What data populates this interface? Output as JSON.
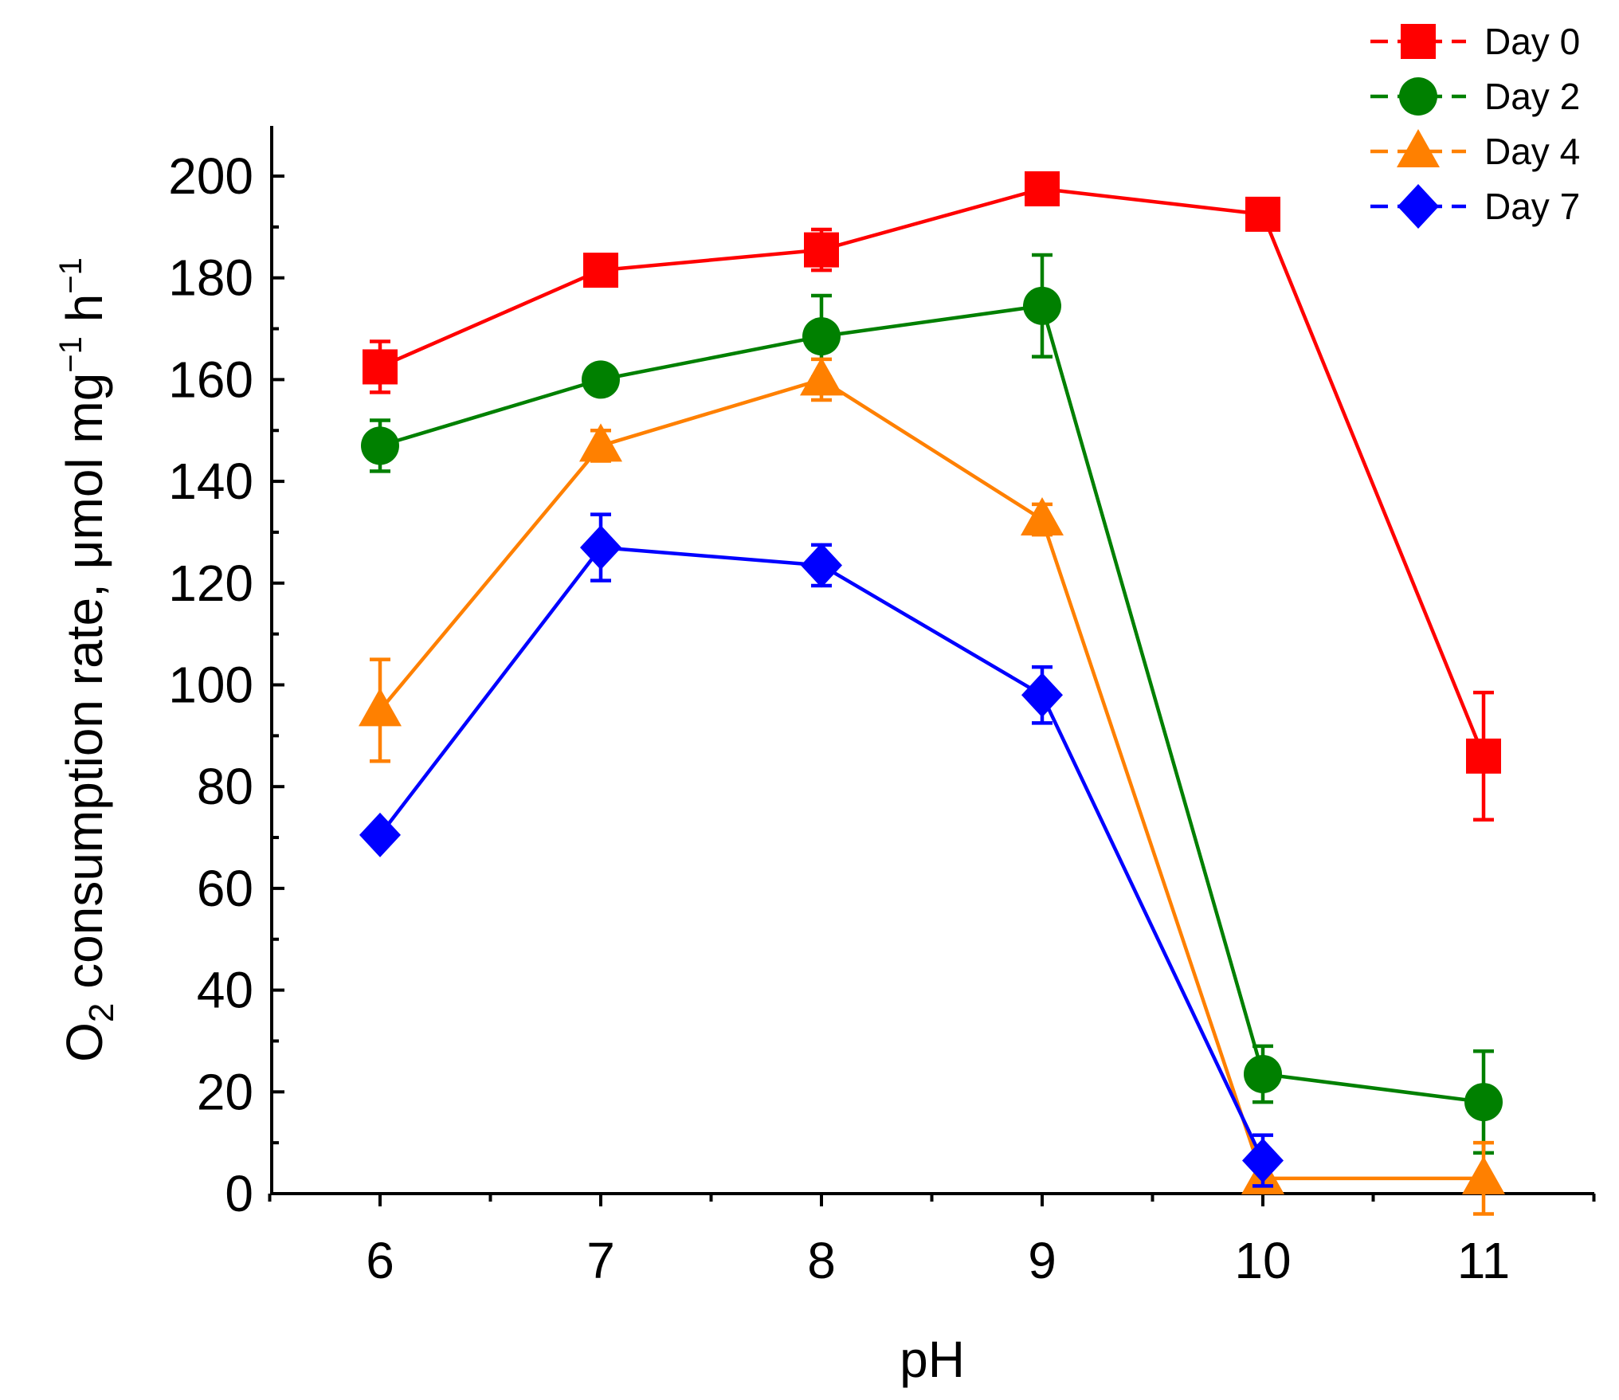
{
  "chart_data": {
    "type": "line",
    "xlabel": "pH",
    "ylabel": {
      "o": "O",
      "sub": "2",
      "main": " consumption rate, μmol mg",
      "sup1": "−1",
      "h": " h",
      "sup2": "−1"
    },
    "xlim": [
      5.5,
      11.5
    ],
    "ylim": [
      0,
      210
    ],
    "x_ticks": [
      "6",
      "7",
      "8",
      "9",
      "10",
      "11"
    ],
    "y_ticks": [
      "0",
      "20",
      "40",
      "60",
      "80",
      "100",
      "120",
      "140",
      "160",
      "180",
      "200"
    ],
    "x_tick_values": [
      6,
      7,
      8,
      9,
      10,
      11
    ],
    "y_tick_values": [
      0,
      20,
      40,
      60,
      80,
      100,
      120,
      140,
      160,
      180,
      200
    ],
    "legend_position": "top-right",
    "x": [
      6,
      7,
      8,
      9,
      10,
      11
    ],
    "series": [
      {
        "name": "Day 0",
        "color": "#ff0000",
        "marker": "square",
        "values": [
          162.5,
          181.5,
          185.5,
          197.5,
          192.5,
          86
        ],
        "errors": [
          5,
          3,
          4,
          0,
          0,
          12.5
        ]
      },
      {
        "name": "Day 2",
        "color": "#008000",
        "marker": "circle",
        "values": [
          147,
          160,
          168.5,
          174.5,
          23.5,
          18
        ],
        "errors": [
          5,
          0,
          8,
          10,
          5.5,
          10
        ]
      },
      {
        "name": "Day 4",
        "color": "#ff8000",
        "marker": "triangle",
        "values": [
          95,
          147,
          160,
          132.5,
          3,
          3
        ],
        "errors": [
          10,
          3,
          4,
          3,
          0,
          7
        ]
      },
      {
        "name": "Day 7",
        "color": "#0000ff",
        "marker": "diamond",
        "values": [
          70.5,
          127,
          123.5,
          98,
          6.5,
          null
        ],
        "errors": [
          0,
          6.5,
          4,
          5.5,
          5,
          0
        ]
      }
    ]
  }
}
